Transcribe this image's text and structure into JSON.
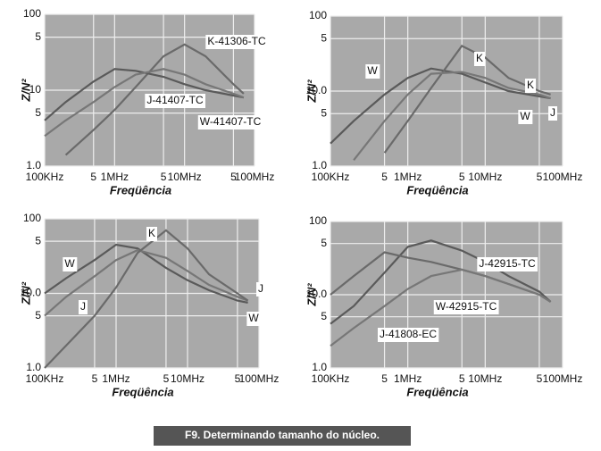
{
  "caption": "F9. Determinando tamanho do núcleo.",
  "chart_data": [
    {
      "type": "line",
      "xlabel": "Freqüência",
      "ylabel": "Z/N²",
      "log_x": true,
      "log_y": true,
      "grid": true,
      "x": [
        100000,
        200000,
        500000,
        1000000,
        2000000,
        5000000,
        10000000,
        20000000,
        50000000,
        70000000
      ],
      "xlim": [
        100000,
        100000000
      ],
      "ylim": [
        1,
        100
      ],
      "xticks": [
        {
          "value": 100000,
          "label": "100KHz"
        },
        {
          "value": 500000,
          "label": "5"
        },
        {
          "value": 1000000,
          "label": "1MHz"
        },
        {
          "value": 5000000,
          "label": "5"
        },
        {
          "value": 10000000,
          "label": "10MHz"
        },
        {
          "value": 50000000,
          "label": "5"
        },
        {
          "value": 100000000,
          "label": "100MHz"
        }
      ],
      "yticks": [
        {
          "value": 1,
          "label": "1.0"
        },
        5,
        10,
        {
          "value": 50,
          "label": "5"
        },
        100
      ],
      "series": [
        {
          "name": "K-41306-TC",
          "color": "#6a6a6a",
          "values": [
            null,
            1.4,
            3,
            5.5,
            11,
            28,
            40,
            28,
            12,
            9
          ]
        },
        {
          "name": "J-41407-TC",
          "color": "#5a5a5a",
          "values": [
            4,
            7,
            13,
            19,
            18,
            15,
            12,
            10,
            8.5,
            8
          ]
        },
        {
          "name": "W-41407-TC",
          "color": "#777777",
          "values": [
            2.5,
            4,
            7,
            11,
            16,
            19,
            16,
            12,
            9,
            8
          ]
        }
      ]
    },
    {
      "type": "line",
      "xlabel": "Freqüência",
      "ylabel": "Z/N²",
      "log_x": true,
      "log_y": true,
      "grid": true,
      "x": [
        100000,
        200000,
        500000,
        1000000,
        2000000,
        5000000,
        10000000,
        20000000,
        50000000,
        70000000
      ],
      "xlim": [
        100000,
        100000000
      ],
      "ylim": [
        1,
        100
      ],
      "xticks": [
        {
          "value": 100000,
          "label": "100KHz"
        },
        {
          "value": 500000,
          "label": "5"
        },
        {
          "value": 1000000,
          "label": "1MHz"
        },
        {
          "value": 5000000,
          "label": "5"
        },
        {
          "value": 10000000,
          "label": "10MHz"
        },
        {
          "value": 50000000,
          "label": "5"
        },
        {
          "value": 100000000,
          "label": "100MHz"
        }
      ],
      "yticks": [
        {
          "value": 1,
          "label": "1.0"
        },
        5,
        {
          "value": 10,
          "label": "10.0"
        },
        {
          "value": 50,
          "label": "5"
        },
        100
      ],
      "series": [
        {
          "name": "W",
          "color": "#5a5a5a",
          "values": [
            2,
            4,
            9,
            15,
            20,
            17,
            13,
            10,
            8.5,
            8
          ]
        },
        {
          "name": "K",
          "color": "#6a6a6a",
          "values": [
            null,
            null,
            1.5,
            4,
            11,
            40,
            28,
            15,
            10,
            9
          ]
        },
        {
          "name": "J",
          "color": "#777777",
          "values": [
            null,
            1.2,
            4,
            9,
            17,
            18,
            15,
            11,
            9,
            8
          ]
        }
      ]
    },
    {
      "type": "line",
      "xlabel": "Freqüência",
      "ylabel": "Z/N²",
      "log_x": true,
      "log_y": true,
      "grid": true,
      "x": [
        100000,
        200000,
        500000,
        1000000,
        2000000,
        5000000,
        10000000,
        20000000,
        50000000,
        70000000
      ],
      "xlim": [
        100000,
        100000000
      ],
      "ylim": [
        1,
        100
      ],
      "xticks": [
        {
          "value": 100000,
          "label": "100KHz"
        },
        {
          "value": 500000,
          "label": "5"
        },
        {
          "value": 1000000,
          "label": "1MHz"
        },
        {
          "value": 5000000,
          "label": "5"
        },
        {
          "value": 10000000,
          "label": "10MHz"
        },
        {
          "value": 50000000,
          "label": "5"
        },
        {
          "value": 100000000,
          "label": "100MHz"
        }
      ],
      "yticks": [
        {
          "value": 1,
          "label": "1.0"
        },
        5,
        {
          "value": 10,
          "label": "10.0"
        },
        {
          "value": 50,
          "label": "5"
        },
        100
      ],
      "series": [
        {
          "name": "W",
          "color": "#5a5a5a",
          "values": [
            10,
            16,
            28,
            45,
            40,
            22,
            15,
            11,
            8,
            7.5
          ]
        },
        {
          "name": "J",
          "color": "#777777",
          "values": [
            5,
            9,
            17,
            28,
            38,
            30,
            20,
            13,
            9,
            8
          ]
        },
        {
          "name": "K",
          "color": "#6a6a6a",
          "values": [
            1,
            2,
            5,
            12,
            35,
            70,
            40,
            18,
            10,
            8
          ]
        }
      ]
    },
    {
      "type": "line",
      "xlabel": "Freqüência",
      "ylabel": "Z/N²",
      "log_x": true,
      "log_y": true,
      "grid": true,
      "x": [
        100000,
        200000,
        500000,
        1000000,
        2000000,
        5000000,
        10000000,
        20000000,
        50000000,
        70000000
      ],
      "xlim": [
        100000,
        100000000
      ],
      "ylim": [
        1,
        100
      ],
      "xticks": [
        {
          "value": 100000,
          "label": "100KHz"
        },
        {
          "value": 500000,
          "label": "5"
        },
        {
          "value": 1000000,
          "label": "1MHz"
        },
        {
          "value": 5000000,
          "label": "5"
        },
        {
          "value": 10000000,
          "label": "10MHz"
        },
        {
          "value": 50000000,
          "label": "5"
        },
        {
          "value": 100000000,
          "label": "100MHz"
        }
      ],
      "yticks": [
        {
          "value": 1,
          "label": "1.0"
        },
        5,
        {
          "value": 10,
          "label": "10.0"
        },
        {
          "value": 50,
          "label": "5"
        },
        100
      ],
      "series": [
        {
          "name": "J-42915-TC",
          "color": "#5a5a5a",
          "values": [
            4,
            7,
            20,
            45,
            55,
            40,
            28,
            18,
            11,
            8
          ]
        },
        {
          "name": "W-42915-TC",
          "color": "#6a6a6a",
          "values": [
            10,
            18,
            38,
            32,
            28,
            22,
            18,
            14,
            10,
            8
          ]
        },
        {
          "name": "J-41808-EC",
          "color": "#777777",
          "values": [
            2,
            3.5,
            7,
            12,
            18,
            22,
            18,
            14,
            10,
            8
          ]
        }
      ]
    }
  ]
}
